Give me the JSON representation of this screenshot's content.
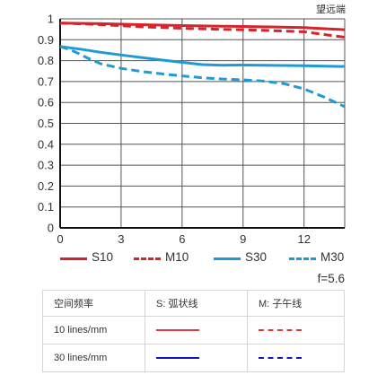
{
  "header": {
    "corner_label": "望远端"
  },
  "f_number": "f=5.6",
  "colors": {
    "red": "#d9232a",
    "blue": "#1e9ad6",
    "table_red": "#e03a3a",
    "table_blue": "#1515c8",
    "grid": "#555555"
  },
  "chart_data": {
    "type": "line",
    "title": "望远端",
    "xlabel": "",
    "ylabel": "",
    "xlim": [
      0,
      14
    ],
    "ylim": [
      0,
      1
    ],
    "xticks": [
      0,
      3,
      6,
      9,
      12
    ],
    "xtick_labels": [
      "0",
      "3",
      "6",
      "9",
      "12"
    ],
    "yticks": [
      0,
      0.1,
      0.2,
      0.3,
      0.4,
      0.5,
      0.6,
      0.7,
      0.8,
      0.9,
      1
    ],
    "ytick_labels": [
      "0",
      "0.1",
      "0.2",
      "0.3",
      "0.4",
      "0.5",
      "0.6",
      "0.7",
      "0.8",
      "0.9",
      "1"
    ],
    "grid": true,
    "legend_position": "bottom",
    "series": [
      {
        "name": "S10",
        "color": "red",
        "style": "solid",
        "points": [
          [
            0,
            0.98
          ],
          [
            2,
            0.977
          ],
          [
            4,
            0.972
          ],
          [
            6,
            0.968
          ],
          [
            8,
            0.965
          ],
          [
            10,
            0.962
          ],
          [
            12,
            0.958
          ],
          [
            13,
            0.953
          ],
          [
            14,
            0.948
          ]
        ]
      },
      {
        "name": "M10",
        "color": "red",
        "style": "dashed",
        "points": [
          [
            0,
            0.98
          ],
          [
            2,
            0.972
          ],
          [
            4,
            0.962
          ],
          [
            6,
            0.955
          ],
          [
            8,
            0.95
          ],
          [
            10,
            0.945
          ],
          [
            12,
            0.938
          ],
          [
            13,
            0.925
          ],
          [
            14,
            0.912
          ]
        ]
      },
      {
        "name": "S30",
        "color": "blue",
        "style": "solid",
        "points": [
          [
            0,
            0.868
          ],
          [
            1,
            0.855
          ],
          [
            2,
            0.84
          ],
          [
            3,
            0.827
          ],
          [
            4,
            0.815
          ],
          [
            5,
            0.803
          ],
          [
            6,
            0.792
          ],
          [
            7,
            0.781
          ],
          [
            8,
            0.778
          ],
          [
            9,
            0.779
          ],
          [
            10,
            0.778
          ],
          [
            11,
            0.777
          ],
          [
            12,
            0.776
          ],
          [
            13,
            0.774
          ],
          [
            14,
            0.772
          ]
        ]
      },
      {
        "name": "M30",
        "color": "blue",
        "style": "dashed",
        "points": [
          [
            0,
            0.868
          ],
          [
            0.5,
            0.852
          ],
          [
            1,
            0.83
          ],
          [
            1.5,
            0.805
          ],
          [
            2,
            0.785
          ],
          [
            3,
            0.763
          ],
          [
            4,
            0.748
          ],
          [
            5,
            0.737
          ],
          [
            6,
            0.727
          ],
          [
            7,
            0.718
          ],
          [
            8,
            0.712
          ],
          [
            9,
            0.708
          ],
          [
            10,
            0.702
          ],
          [
            11,
            0.69
          ],
          [
            12,
            0.665
          ],
          [
            13,
            0.625
          ],
          [
            14,
            0.58
          ]
        ]
      }
    ]
  },
  "legend": [
    {
      "label": "S10",
      "color": "red",
      "style": "solid"
    },
    {
      "label": "M10",
      "color": "red",
      "style": "dashed"
    },
    {
      "label": "S30",
      "color": "blue",
      "style": "solid"
    },
    {
      "label": "M30",
      "color": "blue",
      "style": "dashed"
    }
  ],
  "table": {
    "header": [
      "空间频率",
      "S: 弧状线",
      "M: 子午线"
    ],
    "rows": [
      {
        "label": "10 lines/mm",
        "s_color": "table_red",
        "m_color": "table_red"
      },
      {
        "label": "30 lines/mm",
        "s_color": "table_blue",
        "m_color": "table_blue"
      }
    ]
  }
}
